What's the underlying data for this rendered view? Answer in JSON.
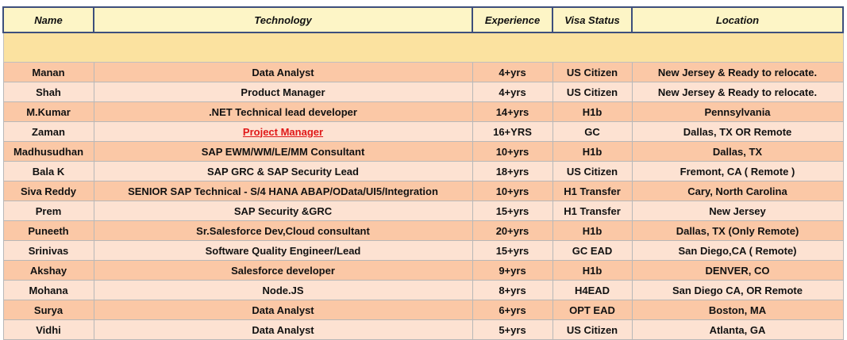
{
  "headers": {
    "name": "Name",
    "technology": "Technology",
    "experience": "Experience",
    "visa": "Visa Status",
    "location": "Location"
  },
  "rows": [
    {
      "name": "Manan",
      "technology": "Data Analyst",
      "experience": "4+yrs",
      "visa": "US Citizen",
      "location": "New Jersey & Ready to relocate."
    },
    {
      "name": "Shah",
      "technology": "Product Manager",
      "experience": "4+yrs",
      "visa": "US Citizen",
      "location": "New Jersey & Ready to relocate."
    },
    {
      "name": "M.Kumar",
      "technology": ".NET Technical lead developer",
      "experience": "14+yrs",
      "visa": "H1b",
      "location": "Pennsylvania"
    },
    {
      "name": "Zaman",
      "technology": "Project Manager",
      "experience": "16+YRS",
      "visa": "GC",
      "location": "Dallas, TX OR Remote"
    },
    {
      "name": "Madhusudhan",
      "technology": "SAP EWM/WM/LE/MM Consultant",
      "experience": "10+yrs",
      "visa": "H1b",
      "location": "Dallas, TX"
    },
    {
      "name": "Bala K",
      "technology": "SAP GRC & SAP Security Lead",
      "experience": "18+yrs",
      "visa": "US Citizen",
      "location": "Fremont, CA ( Remote )"
    },
    {
      "name": "Siva Reddy",
      "technology": "SENIOR SAP Technical - S/4 HANA ABAP/OData/UI5/Integration",
      "experience": "10+yrs",
      "visa": "H1 Transfer",
      "location": "Cary, North Carolina"
    },
    {
      "name": "Prem",
      "technology": "SAP Security &GRC",
      "experience": "15+yrs",
      "visa": "H1 Transfer",
      "location": "New Jersey"
    },
    {
      "name": "Puneeth",
      "technology": "Sr.Salesforce Dev,Cloud consultant",
      "experience": "20+yrs",
      "visa": "H1b",
      "location": "Dallas, TX (Only Remote)"
    },
    {
      "name": "Srinivas",
      "technology": "Software Quality Engineer/Lead",
      "experience": "15+yrs",
      "visa": "GC EAD",
      "location": "San Diego,CA ( Remote)"
    },
    {
      "name": "Akshay",
      "technology": "Salesforce developer",
      "experience": "9+yrs",
      "visa": "H1b",
      "location": "DENVER, CO"
    },
    {
      "name": "Mohana",
      "technology": "Node.JS",
      "experience": "8+yrs",
      "visa": "H4EAD",
      "location": "San Diego CA, OR Remote"
    },
    {
      "name": "Surya",
      "technology": "Data Analyst",
      "experience": "6+yrs",
      "visa": "OPT EAD",
      "location": "Boston, MA"
    },
    {
      "name": "Vidhi",
      "technology": "Data Analyst",
      "experience": "5+yrs",
      "visa": "US Citizen",
      "location": "Atlanta, GA"
    }
  ]
}
